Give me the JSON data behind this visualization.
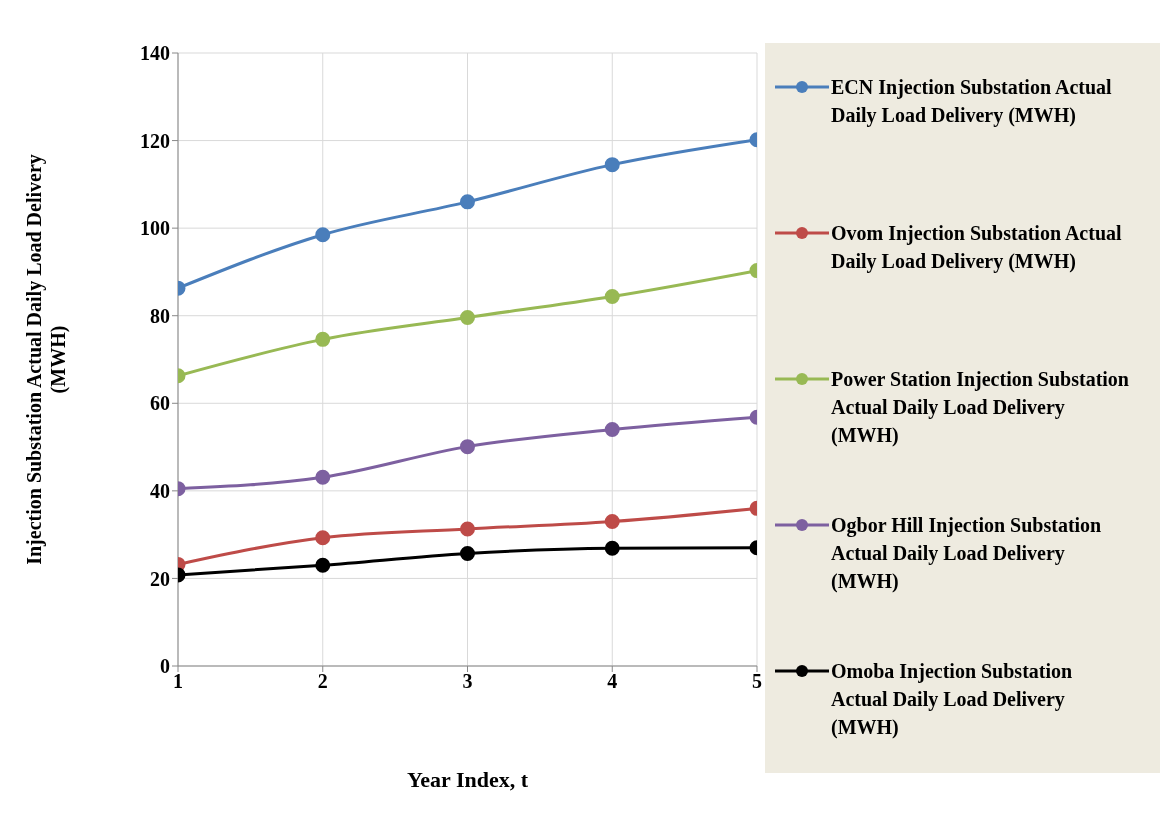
{
  "chart_data": {
    "type": "line",
    "xlabel": "Year Index, t",
    "ylabel": "Injection Substation  Actual Daily Load Delivery (MWH)",
    "x": [
      1,
      2,
      3,
      4,
      5
    ],
    "xlim": [
      1,
      5
    ],
    "xticks": [
      1,
      2,
      3,
      4,
      5
    ],
    "ylim": [
      0,
      140
    ],
    "yticks": [
      0,
      20,
      40,
      60,
      80,
      100,
      120,
      140
    ],
    "grid": true,
    "legend": "right",
    "marker": "circle",
    "line_style": "solid",
    "series": [
      {
        "name": "ECN Injection Substation Actual Daily Load Delivery (MWH)",
        "color": "#4a7ebb",
        "values": [
          86.3,
          98.5,
          106,
          114.5,
          120.2
        ]
      },
      {
        "name": "Ovom Injection Substation Actual Daily Load Delivery (MWH)",
        "color": "#be4b48",
        "values": [
          23.2,
          29.3,
          31.3,
          33,
          36
        ]
      },
      {
        "name": "Power Station Injection Substation  Actual Daily Load Delivery  (MWH)",
        "color": "#98b954",
        "values": [
          66.3,
          74.6,
          79.6,
          84.4,
          90.3
        ]
      },
      {
        "name": "Ogbor Hill Injection Substation  Actual Daily Load Delivery (MWH)",
        "color": "#7d60a0",
        "values": [
          40.5,
          43.1,
          50.1,
          54,
          56.8
        ]
      },
      {
        "name": "Omoba Injection Substation Actual Daily Load Delivery (MWH)",
        "color": "#000000",
        "values": [
          20.8,
          23,
          25.7,
          26.9,
          27
        ]
      }
    ]
  }
}
